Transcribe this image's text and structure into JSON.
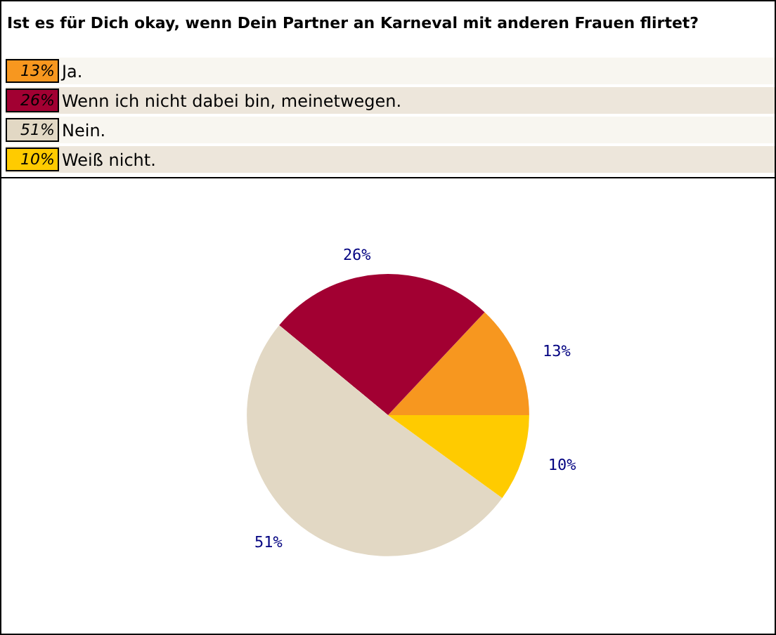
{
  "chart_data": {
    "type": "pie",
    "title": "Ist es für Dich okay, wenn Dein Partner an Karneval mit anderen Frauen flirtet?",
    "categories": [
      "Ja.",
      "Wenn ich nicht dabei bin, meinetwegen.",
      "Nein.",
      "Weiß nicht."
    ],
    "values": [
      13,
      26,
      51,
      10
    ],
    "colors": [
      "#f7971f",
      "#a20032",
      "#e2d8c4",
      "#ffcb00"
    ],
    "value_labels": [
      "13%",
      "26%",
      "51%",
      "10%"
    ],
    "legend": "top left"
  }
}
